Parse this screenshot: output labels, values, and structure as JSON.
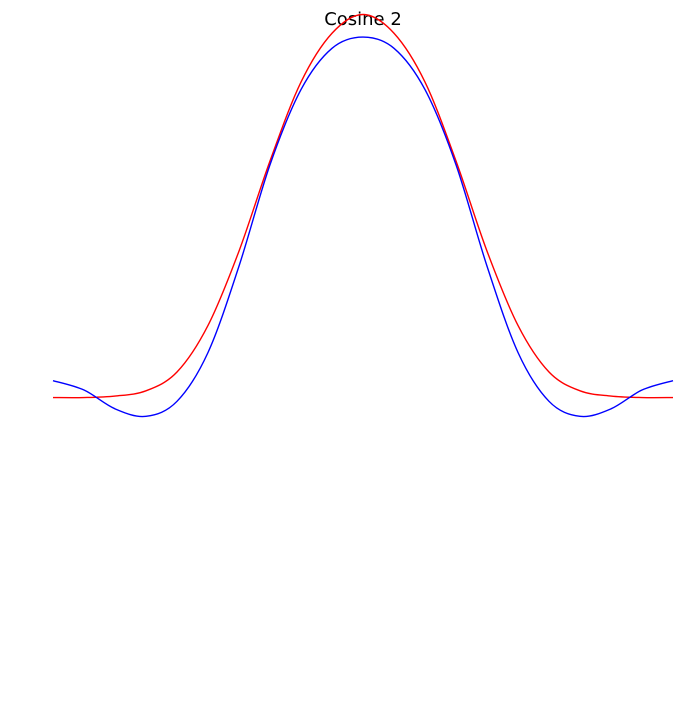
{
  "chart_data": {
    "type": "line",
    "title": "Cosine 2",
    "xlabel": "",
    "ylabel": "",
    "axes_visible": false,
    "grid": false,
    "xlim": [
      -1,
      1
    ],
    "ylim": [
      -0.8,
      1.0
    ],
    "series": [
      {
        "color": "#ff0000",
        "x": [
          -1.0,
          -0.9,
          -0.8,
          -0.7,
          -0.6,
          -0.5,
          -0.4,
          -0.3,
          -0.2,
          -0.1,
          0.0,
          0.1,
          0.2,
          0.3,
          0.4,
          0.5,
          0.6,
          0.7,
          0.8,
          0.9,
          1.0
        ],
        "y": [
          0.0,
          0.0,
          0.004,
          0.018,
          0.068,
          0.192,
          0.39,
          0.63,
          0.84,
          0.97,
          1.02,
          0.97,
          0.84,
          0.63,
          0.39,
          0.192,
          0.068,
          0.018,
          0.004,
          0.0,
          0.0
        ]
      },
      {
        "color": "#0000ff",
        "x": [
          -1.0,
          -0.9,
          -0.8,
          -0.7,
          -0.6,
          -0.5,
          -0.4,
          -0.3,
          -0.2,
          -0.1,
          0.0,
          0.1,
          0.2,
          0.3,
          0.4,
          0.5,
          0.6,
          0.7,
          0.8,
          0.9,
          1.0
        ],
        "y": [
          0.045,
          0.02,
          -0.03,
          -0.05,
          -0.01,
          0.12,
          0.35,
          0.62,
          0.82,
          0.93,
          0.96,
          0.93,
          0.82,
          0.62,
          0.35,
          0.12,
          -0.01,
          -0.05,
          -0.03,
          0.02,
          0.045
        ]
      }
    ]
  }
}
